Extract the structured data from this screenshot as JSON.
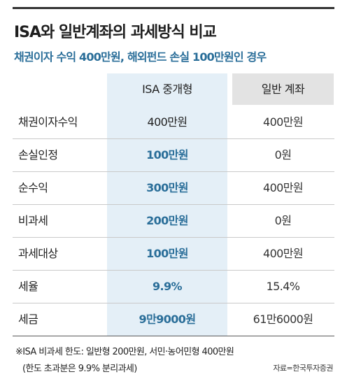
{
  "title": "ISA와 일반계좌의 과세방식 비교",
  "subtitle": "채권이자 수익 400만원, 해외펀드 손실 100만원인 경우",
  "headers": {
    "isa": "ISA 중개형",
    "general": "일반 계좌"
  },
  "colors": {
    "accent": "#2a6e99",
    "isa_column_bg": "#e4eff7",
    "general_header_bg": "#e3e3e3"
  },
  "rows": [
    {
      "label": "채권이자수익",
      "isa": "400만원",
      "general": "400만원",
      "isa_emphasized": false
    },
    {
      "label": "손실인정",
      "isa": "100만원",
      "general": "0원",
      "isa_emphasized": true
    },
    {
      "label": "순수익",
      "isa": "300만원",
      "general": "400만원",
      "isa_emphasized": true
    },
    {
      "label": "비과세",
      "isa": "200만원",
      "general": "0원",
      "isa_emphasized": true
    },
    {
      "label": "과세대상",
      "isa": "100만원",
      "general": "400만원",
      "isa_emphasized": true
    },
    {
      "label": "세율",
      "isa": "9.9%",
      "general": "15.4%",
      "isa_emphasized": true
    },
    {
      "label": "세금",
      "isa": "9만9000원",
      "general": "61만6000원",
      "isa_emphasized": true
    }
  ],
  "footnote": {
    "line1": "※ISA 비과세 한도: 일반형 200만원, 서민·농어민형 400만원",
    "line2": "(한도 초과분은 9.9% 분리과세)"
  },
  "source": "자료=한국투자증권"
}
